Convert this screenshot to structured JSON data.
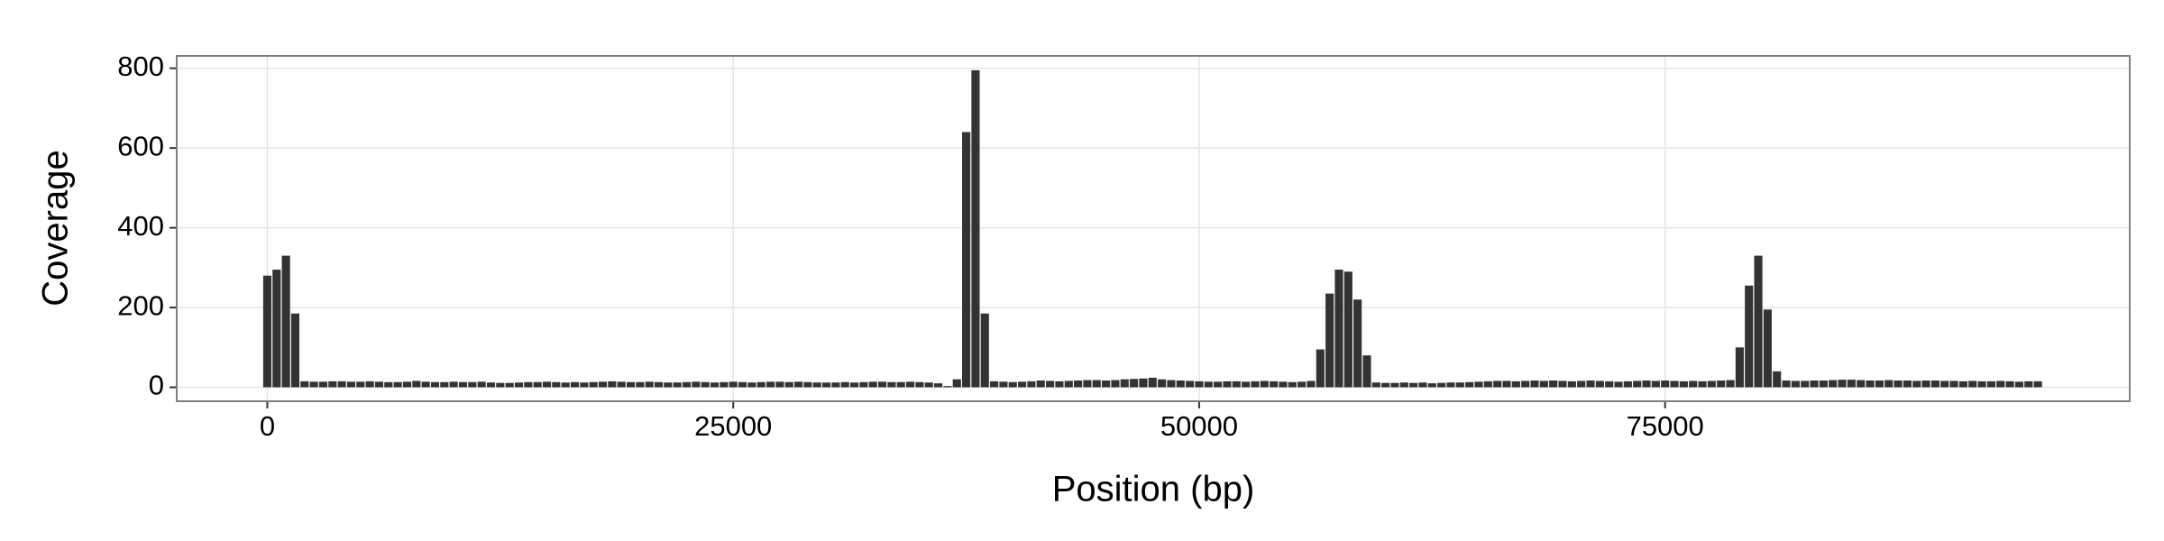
{
  "chart_data": {
    "type": "histogram",
    "xlabel": "Position (bp)",
    "ylabel": "Coverage",
    "bins": [
      -250,
      250,
      750,
      1250,
      1750,
      2250,
      2750,
      3250,
      3750,
      4250,
      4750,
      5250,
      5750,
      6250,
      6750,
      7250,
      7750,
      8250,
      8750,
      9250,
      9750,
      10250,
      10750,
      11250,
      11750,
      12250,
      12750,
      13250,
      13750,
      14250,
      14750,
      15250,
      15750,
      16250,
      16750,
      17250,
      17750,
      18250,
      18750,
      19250,
      19750,
      20250,
      20750,
      21250,
      21750,
      22250,
      22750,
      23250,
      23750,
      24250,
      24750,
      25250,
      25750,
      26250,
      26750,
      27250,
      27750,
      28250,
      28750,
      29250,
      29750,
      30250,
      30750,
      31250,
      31750,
      32250,
      32750,
      33250,
      33750,
      34250,
      34750,
      35250,
      35750,
      36250,
      36750,
      37250,
      37750,
      38250,
      38750,
      39250,
      39750,
      40250,
      40750,
      41250,
      41750,
      42250,
      42750,
      43250,
      43750,
      44250,
      44750,
      45250,
      45750,
      46250,
      46750,
      47250,
      47750,
      48250,
      48750,
      49250,
      49750,
      50250,
      50750,
      51250,
      51750,
      52250,
      52750,
      53250,
      53750,
      54250,
      54750,
      55250,
      55750,
      56250,
      56750,
      57250,
      57750,
      58250,
      58750,
      59250,
      59750,
      60250,
      60750,
      61250,
      61750,
      62250,
      62750,
      63250,
      63750,
      64250,
      64750,
      65250,
      65750,
      66250,
      66750,
      67250,
      67750,
      68250,
      68750,
      69250,
      69750,
      70250,
      70750,
      71250,
      71750,
      72250,
      72750,
      73250,
      73750,
      74250,
      74750,
      75250,
      75750,
      76250,
      76750,
      77250,
      77750,
      78250,
      78750,
      79250,
      79750,
      80250,
      80750,
      81250,
      81750,
      82250,
      82750,
      83250,
      83750,
      84250,
      84750,
      85250,
      85750,
      86250,
      86750,
      87250,
      87750,
      88250,
      88750,
      89250,
      89750,
      90250,
      90750,
      91250,
      91750,
      92250,
      92750,
      93250,
      93750,
      94250,
      94750,
      95250
    ],
    "values": [
      280,
      295,
      330,
      185,
      15,
      14,
      14,
      15,
      15,
      14,
      14,
      15,
      14,
      13,
      13,
      14,
      16,
      14,
      13,
      13,
      14,
      13,
      13,
      14,
      12,
      11,
      11,
      12,
      13,
      13,
      14,
      13,
      12,
      13,
      12,
      13,
      14,
      15,
      14,
      13,
      13,
      14,
      13,
      12,
      12,
      13,
      14,
      13,
      12,
      13,
      14,
      13,
      12,
      13,
      14,
      14,
      13,
      14,
      13,
      12,
      12,
      12,
      13,
      12,
      13,
      14,
      14,
      13,
      13,
      14,
      13,
      12,
      10,
      3,
      20,
      640,
      795,
      185,
      15,
      14,
      13,
      14,
      15,
      17,
      16,
      15,
      16,
      17,
      18,
      18,
      17,
      18,
      20,
      21,
      22,
      24,
      20,
      18,
      17,
      16,
      15,
      14,
      14,
      15,
      15,
      14,
      15,
      16,
      15,
      14,
      13,
      14,
      16,
      95,
      235,
      295,
      290,
      220,
      80,
      12,
      11,
      11,
      12,
      11,
      12,
      10,
      11,
      12,
      12,
      13,
      14,
      15,
      16,
      16,
      15,
      16,
      17,
      16,
      17,
      16,
      15,
      16,
      17,
      16,
      15,
      14,
      15,
      16,
      17,
      16,
      17,
      16,
      15,
      16,
      15,
      16,
      17,
      18,
      100,
      255,
      330,
      195,
      40,
      17,
      16,
      16,
      17,
      17,
      18,
      19,
      19,
      18,
      17,
      17,
      18,
      17,
      17,
      16,
      17,
      17,
      16,
      16,
      15,
      16,
      15,
      15,
      16,
      15,
      14,
      15,
      15
    ],
    "color": "#333333",
    "xlim": [
      -4860,
      99930
    ],
    "xticks": [
      0,
      25000,
      50000,
      75000
    ],
    "ylim": [
      -35,
      831
    ],
    "yticks": [
      0,
      200,
      400,
      600,
      800
    ],
    "grid": true
  }
}
